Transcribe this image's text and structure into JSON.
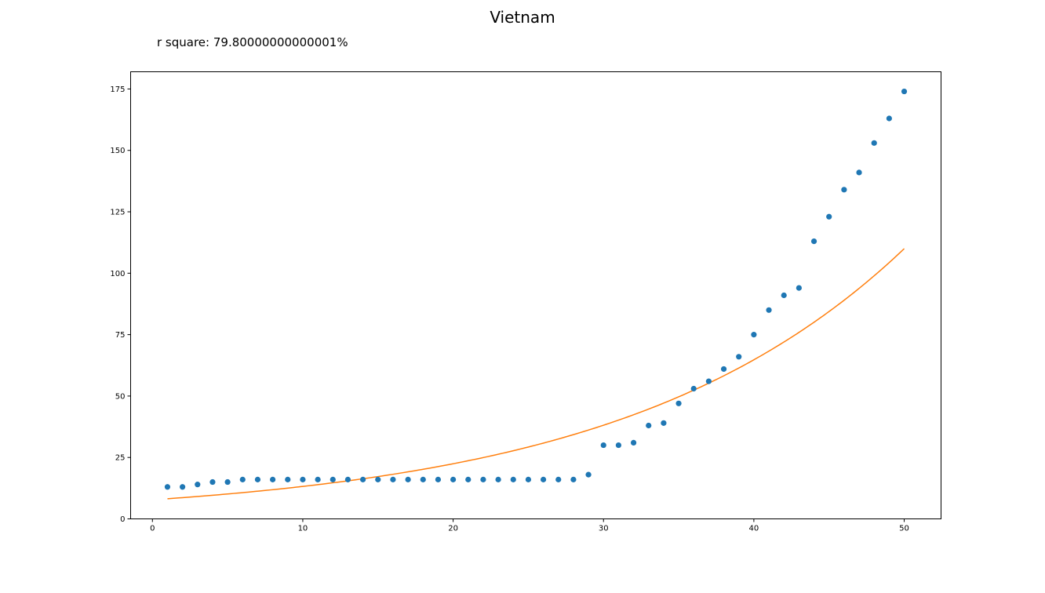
{
  "chart_data": {
    "type": "scatter",
    "title": "Vietnam",
    "annotation": "r square: 79.80000000000001%",
    "xlabel": "",
    "ylabel": "",
    "xlim": [
      -1.45,
      52.45
    ],
    "ylim": [
      0,
      182
    ],
    "xticks": [
      0,
      10,
      20,
      30,
      40,
      50
    ],
    "yticks": [
      0,
      25,
      50,
      75,
      100,
      125,
      150,
      175
    ],
    "grid": false,
    "series": [
      {
        "kind": "scatter",
        "color": "#1f77b4",
        "x": [
          1,
          2,
          3,
          4,
          5,
          6,
          7,
          8,
          9,
          10,
          11,
          12,
          13,
          14,
          15,
          16,
          17,
          18,
          19,
          20,
          21,
          22,
          23,
          24,
          25,
          26,
          27,
          28,
          29,
          30,
          31,
          32,
          33,
          34,
          35,
          36,
          37,
          38,
          39,
          40,
          41,
          42,
          43,
          44,
          45,
          46,
          47,
          48,
          49,
          50
        ],
        "y": [
          13,
          13,
          14,
          15,
          15,
          16,
          16,
          16,
          16,
          16,
          16,
          16,
          16,
          16,
          16,
          16,
          16,
          16,
          16,
          16,
          16,
          16,
          16,
          16,
          16,
          16,
          16,
          16,
          18,
          30,
          30,
          31,
          38,
          39,
          47,
          53,
          56,
          61,
          66,
          75,
          85,
          91,
          94,
          113,
          123,
          134,
          141,
          153,
          163,
          174
        ]
      },
      {
        "kind": "line",
        "color": "#ff7f0e",
        "fit": "exponential",
        "x_start": 1,
        "x_end": 50,
        "y_start": 8.2,
        "y_end": 110
      }
    ]
  }
}
